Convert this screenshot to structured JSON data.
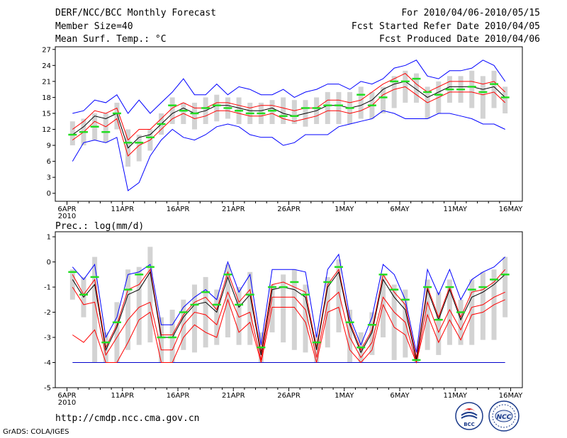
{
  "header": {
    "title": "DERF/NCC/BCC Monthly Forecast",
    "member_size": "Member Size=40",
    "variable": "Mean Surf. Temp.: °C",
    "period": "For 2010/04/06-2010/05/15",
    "started": "Fcst Started Refer Date 2010/04/05",
    "produced": "Fcst Produced Date 2010/04/06"
  },
  "footer": {
    "url": "http://cmdp.ncc.cma.gov.cn",
    "credit": "GrADS: COLA/IGES",
    "logo_bcc": "BCC",
    "logo_ncc": "NCC"
  },
  "colors": {
    "envelope": "#0000ff",
    "spread": "#ff0000",
    "mean": "#000000",
    "box": "#d3d3d3",
    "median": "#22dd22",
    "floor": "#0000cc"
  },
  "chart_data": [
    {
      "type": "line",
      "title": "Mean Surf. Temp.: °C",
      "days": 40,
      "xlabels": [
        "6APR",
        "11APR",
        "16APR",
        "21APR",
        "26APR",
        "1MAY",
        "6MAY",
        "11MAY",
        "16MAY"
      ],
      "xsublabel": "2010",
      "ylim": [
        -1.5,
        27.5
      ],
      "yticks": [
        0,
        3,
        6,
        9,
        12,
        15,
        18,
        21,
        24,
        27
      ],
      "series": [
        {
          "name": "max",
          "values": [
            15,
            15.5,
            17.5,
            17,
            18.5,
            15,
            17.5,
            15,
            17,
            19,
            21.5,
            18.5,
            18.5,
            20.5,
            18.5,
            20,
            19.5,
            18.5,
            18.5,
            19.5,
            18,
            19,
            19.5,
            20.5,
            20.5,
            19.5,
            21,
            20.5,
            21.5,
            23.5,
            24,
            25,
            22,
            21.5,
            23,
            23,
            23.5,
            25,
            24,
            21
          ]
        },
        {
          "name": "upper",
          "values": [
            12,
            13.5,
            15.5,
            15,
            16,
            10,
            12,
            12,
            14,
            16,
            17,
            16,
            16,
            17,
            17,
            16.5,
            16,
            16.5,
            16.5,
            16,
            15.5,
            16,
            16,
            17.5,
            17.5,
            17,
            17.5,
            19,
            20.5,
            21.5,
            22.5,
            20.5,
            19,
            20,
            21,
            21,
            21,
            20.5,
            21,
            19
          ]
        },
        {
          "name": "mean",
          "values": [
            11,
            12.5,
            14.5,
            14,
            15,
            8.5,
            10.5,
            11,
            13,
            15,
            16,
            15,
            15.5,
            16.5,
            16.5,
            16,
            15.5,
            15.5,
            16,
            15,
            14.5,
            15,
            15.5,
            16.5,
            16.5,
            16,
            16.5,
            17.5,
            19.5,
            20.5,
            21,
            19.5,
            18,
            19,
            20,
            20,
            20,
            19.5,
            20,
            18
          ]
        },
        {
          "name": "lower",
          "values": [
            10,
            11.5,
            13.5,
            12.5,
            14,
            7,
            9,
            10,
            12,
            14,
            15,
            14,
            14.5,
            15.5,
            15.5,
            15,
            14.5,
            14.5,
            15,
            14,
            13.5,
            14,
            14.5,
            15.5,
            15.5,
            15,
            15.5,
            16.5,
            18.5,
            19.5,
            20,
            18.5,
            17,
            18,
            19,
            19,
            19,
            18.5,
            19,
            17
          ]
        },
        {
          "name": "min",
          "values": [
            6,
            9.5,
            10,
            9.5,
            10.5,
            0.5,
            2,
            7,
            10,
            12,
            10.5,
            10,
            11,
            12.5,
            13,
            12.5,
            11,
            10.5,
            10.5,
            9,
            9.5,
            11,
            11,
            11,
            12.5,
            13,
            13.5,
            14,
            15.5,
            15,
            14,
            14,
            14,
            15,
            15,
            14.5,
            14,
            13,
            13,
            12
          ]
        },
        {
          "name": "median",
          "values": [
            11,
            11.5,
            12.5,
            11.5,
            15,
            9.5,
            9.5,
            10.5,
            13,
            16.5,
            15.5,
            15,
            16,
            16.5,
            16,
            15.5,
            15,
            15,
            15.5,
            14.5,
            14.5,
            16,
            16,
            16.5,
            16.5,
            16,
            18.5,
            16.5,
            18,
            21,
            21,
            21.5,
            19,
            18.5,
            19.5,
            19.5,
            20,
            19,
            20.5,
            18
          ]
        },
        {
          "name": "box_low",
          "values": [
            9,
            9,
            10,
            9.5,
            12,
            5,
            6,
            8,
            11,
            13,
            13,
            12,
            13,
            13.5,
            14,
            13,
            13,
            13,
            13,
            13,
            13,
            12.5,
            13,
            13,
            13,
            13,
            14,
            14,
            15,
            16,
            17,
            17,
            14,
            15,
            17,
            17,
            16,
            14,
            16,
            15
          ]
        },
        {
          "name": "box_high",
          "values": [
            13.5,
            14,
            15,
            15,
            17,
            12,
            11,
            12,
            15,
            18,
            17,
            17,
            18,
            18.5,
            18,
            18,
            17,
            17,
            17.5,
            18,
            17.5,
            17.5,
            18,
            19,
            19,
            19,
            20,
            19,
            20,
            22,
            23,
            22.5,
            20,
            21,
            22,
            22,
            23,
            22,
            23,
            20
          ]
        }
      ]
    },
    {
      "type": "line",
      "title": "Prec.: log(mm/d)",
      "days": 40,
      "xlabels": [
        "6APR",
        "11APR",
        "16APR",
        "21APR",
        "26APR",
        "1MAY",
        "6MAY",
        "11MAY",
        "16MAY"
      ],
      "xsublabel": "2010",
      "ylim": [
        -5,
        1.2
      ],
      "yticks": [
        -5,
        -4,
        -3,
        -2,
        -1,
        0,
        1
      ],
      "floor_value": -4,
      "series": [
        {
          "name": "max",
          "values": [
            -0.2,
            -0.7,
            -0.1,
            -3,
            -2.2,
            -0.5,
            -0.4,
            -0.1,
            -2.5,
            -2.5,
            -1.8,
            -1.4,
            -1.1,
            -1.5,
            0,
            -1.2,
            -0.5,
            -3.3,
            -0.3,
            -0.3,
            -0.3,
            -0.4,
            -3,
            -0.3,
            0.3,
            -2.2,
            -3.3,
            -2.2,
            -0.1,
            -0.5,
            -1.5,
            -3.6,
            -0.3,
            -1.3,
            -0.3,
            -1.5,
            -0.7,
            -0.4,
            -0.2,
            0.2
          ]
        },
        {
          "name": "upper",
          "values": [
            -0.5,
            -1.3,
            -0.7,
            -3.4,
            -2.5,
            -1.1,
            -0.9,
            -0.3,
            -2.9,
            -2.9,
            -2.1,
            -1.6,
            -1.4,
            -1.9,
            -0.4,
            -1.6,
            -1.1,
            -3.6,
            -0.9,
            -0.8,
            -1,
            -1.2,
            -3.4,
            -0.9,
            -0.3,
            -2.4,
            -3.5,
            -2.7,
            -0.5,
            -1.2,
            -1.7,
            -3.8,
            -1,
            -2.2,
            -1,
            -2.2,
            -1.2,
            -1.1,
            -0.8,
            -0.3
          ]
        },
        {
          "name": "mean",
          "values": [
            -0.7,
            -1.4,
            -0.9,
            -3.5,
            -2.6,
            -1.3,
            -1.1,
            -0.4,
            -3,
            -3,
            -2.2,
            -1.7,
            -1.6,
            -2,
            -0.6,
            -1.8,
            -1.3,
            -3.7,
            -1.1,
            -1,
            -1.1,
            -1.4,
            -3.5,
            -1,
            -0.4,
            -2.5,
            -3.6,
            -2.8,
            -0.7,
            -1.4,
            -1.9,
            -3.9,
            -1.1,
            -2.3,
            -1.1,
            -2.3,
            -1.4,
            -1.2,
            -0.9,
            -0.5
          ]
        },
        {
          "name": "lower",
          "values": [
            -1,
            -1.7,
            -1.6,
            -3.7,
            -3,
            -2.3,
            -1.8,
            -1.6,
            -3.5,
            -3.5,
            -2.5,
            -2,
            -2.1,
            -2.5,
            -1.2,
            -2.2,
            -2,
            -3.9,
            -1.4,
            -1.4,
            -1.4,
            -1.9,
            -3.8,
            -1.6,
            -1.2,
            -3,
            -3.8,
            -3.2,
            -1.4,
            -2,
            -2.4,
            -4,
            -1.6,
            -2.8,
            -1.9,
            -2.7,
            -1.8,
            -1.7,
            -1.4,
            -1.2
          ]
        },
        {
          "name": "lower2",
          "values": [
            -2.9,
            -3.2,
            -2.7,
            -4,
            -4,
            -3.2,
            -2.3,
            -2,
            -4,
            -4,
            -3,
            -2.5,
            -2.8,
            -3,
            -1.5,
            -2.8,
            -2.4,
            -4,
            -1.8,
            -1.8,
            -1.8,
            -2.4,
            -4,
            -2,
            -1.8,
            -3.5,
            -4,
            -3.5,
            -1.7,
            -2.6,
            -2.9,
            -4,
            -2.1,
            -3.2,
            -2.3,
            -3.1,
            -2.1,
            -2,
            -1.7,
            -1.5
          ]
        },
        {
          "name": "median",
          "values": [
            -0.4,
            -1.3,
            -0.6,
            -3.2,
            -2.4,
            -1.1,
            -0.5,
            -0.2,
            -3,
            -3,
            -2,
            -1.7,
            -1.2,
            -1.7,
            -0.5,
            -1.7,
            -1.3,
            -3.4,
            -1,
            -1,
            -0.8,
            -1.3,
            -3.2,
            -0.8,
            -0.2,
            -2.4,
            -3.4,
            -2.5,
            -0.5,
            -1.1,
            -1.5,
            -3.9,
            -1,
            -2.3,
            -1,
            -2,
            -1.1,
            -1,
            -0.7,
            -0.5
          ]
        },
        {
          "name": "box_low",
          "values": [
            -1.5,
            -2.2,
            -4,
            -4,
            -4,
            -3.5,
            -3.3,
            -3.2,
            -4,
            -4,
            -3.5,
            -3.6,
            -3.4,
            -3.3,
            -3,
            -3.3,
            -3.3,
            -4,
            -2.8,
            -3.2,
            -3.5,
            -3.6,
            -4,
            -3.4,
            -2.8,
            -4,
            -4,
            -3.7,
            -3,
            -3.9,
            -3.8,
            -4,
            -3.5,
            -3.7,
            -3.3,
            -3.3,
            -3.3,
            -3.1,
            -3.1,
            -2.2
          ]
        },
        {
          "name": "box_high",
          "values": [
            -0.3,
            -0.6,
            0.2,
            -2.8,
            -1.6,
            -0.3,
            -0.2,
            0.6,
            -2.2,
            -1.9,
            -1.5,
            -0.9,
            -0.6,
            -1.1,
            -0.1,
            -1,
            -0.4,
            -2.8,
            -0.9,
            -0.5,
            -0.3,
            -0.9,
            -2.9,
            -0.6,
            0.1,
            -1.9,
            -2.8,
            -2,
            -0.5,
            -0.9,
            -1.1,
            -3.7,
            -0.7,
            -1.2,
            -0.7,
            -1.5,
            -0.7,
            -0.4,
            -0.3,
            0.2
          ]
        }
      ]
    }
  ]
}
